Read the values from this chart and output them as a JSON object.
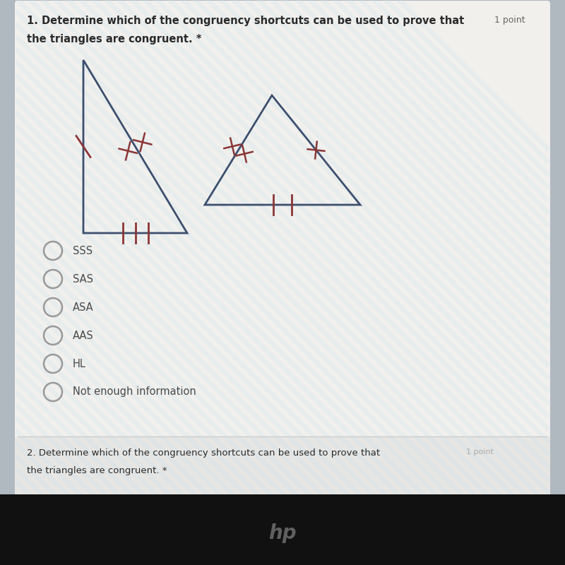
{
  "bg_color_outer": "#b0b8c0",
  "card_bg": "#f2f0ed",
  "card2_bg": "#e8e6e3",
  "title_text": "1. Determine which of the congruency shortcuts can be used to prove that",
  "title_point": "1 point",
  "subtitle_text": "the triangles are congruent. *",
  "options": [
    "SSS",
    "SAS",
    "ASA",
    "AAS",
    "HL",
    "Not enough information"
  ],
  "text_color": "#2a2a2a",
  "option_text_color": "#4a4a4a",
  "mark_color": "#8b3535",
  "triangle_color": "#3d4f6e",
  "q2_title": "2. Determine which of the congruency shortcuts can be used to prove that",
  "q2_point": "1 point",
  "q2_subtitle": "the triangles are congruent. *",
  "bottom_bar_color": "#111111",
  "hp_color": "#606060",
  "option_circle_color": "#999999",
  "sep_color": "#cccccc"
}
